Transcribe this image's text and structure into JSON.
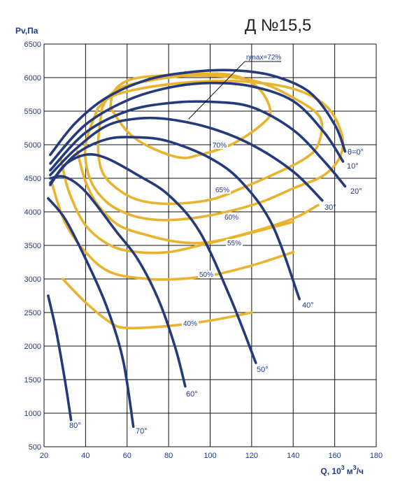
{
  "chart_data": {
    "type": "line",
    "title": "Д №15,5",
    "ylabel": "Pv,Па",
    "xlabel_main": "Q, 10",
    "xlabel_sup1": "3",
    "xlabel_unit": "м",
    "xlabel_sup2": "3",
    "xlabel_tail": "/ч",
    "xlim": [
      20,
      180
    ],
    "ylim": [
      500,
      6500
    ],
    "xticks": [
      20,
      40,
      60,
      80,
      100,
      120,
      140,
      160,
      180
    ],
    "yticks": [
      500,
      1000,
      1500,
      2000,
      2500,
      3000,
      3500,
      4000,
      4500,
      5000,
      5500,
      6000,
      6500
    ],
    "grid": true,
    "eta_max_label": "ηmax=72%",
    "colors": {
      "blade_curves": "#243a7a",
      "efficiency_curves": "#e8b430",
      "grid": "#111111",
      "text": "#1f3a8a"
    },
    "blade_angle_series": [
      {
        "name": "θ=0°",
        "points": [
          [
            23,
            4850
          ],
          [
            35,
            5320
          ],
          [
            50,
            5700
          ],
          [
            70,
            5970
          ],
          [
            90,
            6080
          ],
          [
            110,
            6110
          ],
          [
            130,
            6030
          ],
          [
            148,
            5780
          ],
          [
            160,
            5300
          ],
          [
            165,
            4900
          ]
        ]
      },
      {
        "name": "10°",
        "points": [
          [
            23,
            4720
          ],
          [
            40,
            5300
          ],
          [
            60,
            5660
          ],
          [
            80,
            5850
          ],
          [
            100,
            5920
          ],
          [
            120,
            5870
          ],
          [
            140,
            5650
          ],
          [
            155,
            5180
          ],
          [
            164,
            4750
          ]
        ]
      },
      {
        "name": "20°",
        "points": [
          [
            23,
            4620
          ],
          [
            40,
            5180
          ],
          [
            60,
            5500
          ],
          [
            80,
            5620
          ],
          [
            100,
            5640
          ],
          [
            120,
            5560
          ],
          [
            140,
            5220
          ],
          [
            155,
            4750
          ],
          [
            165,
            4380
          ]
        ]
      },
      {
        "name": "30°",
        "points": [
          [
            23,
            4550
          ],
          [
            35,
            4930
          ],
          [
            50,
            5280
          ],
          [
            65,
            5390
          ],
          [
            80,
            5380
          ],
          [
            100,
            5250
          ],
          [
            120,
            5000
          ],
          [
            140,
            4600
          ],
          [
            154,
            4170
          ]
        ]
      },
      {
        "name": "40°",
        "points": [
          [
            23,
            4430
          ],
          [
            35,
            4850
          ],
          [
            50,
            5080
          ],
          [
            65,
            5110
          ],
          [
            80,
            5050
          ],
          [
            100,
            4800
          ],
          [
            115,
            4450
          ],
          [
            130,
            3800
          ],
          [
            143,
            2700
          ]
        ]
      },
      {
        "name": "50°",
        "points": [
          [
            23,
            4400
          ],
          [
            30,
            4700
          ],
          [
            40,
            4850
          ],
          [
            50,
            4800
          ],
          [
            65,
            4550
          ],
          [
            80,
            4250
          ],
          [
            95,
            3700
          ],
          [
            110,
            2700
          ],
          [
            122,
            1750
          ]
        ]
      },
      {
        "name": "60°",
        "points": [
          [
            23,
            4500
          ],
          [
            30,
            4520
          ],
          [
            40,
            4300
          ],
          [
            55,
            3700
          ],
          [
            65,
            3300
          ],
          [
            75,
            2700
          ],
          [
            83,
            2000
          ],
          [
            88,
            1400
          ]
        ]
      },
      {
        "name": "70°",
        "points": [
          [
            22,
            4200
          ],
          [
            30,
            3900
          ],
          [
            40,
            3300
          ],
          [
            50,
            2600
          ],
          [
            58,
            1800
          ],
          [
            63,
            800
          ]
        ]
      },
      {
        "name": "80°",
        "points": [
          [
            22,
            2750
          ],
          [
            26,
            2200
          ],
          [
            30,
            1500
          ],
          [
            33,
            900
          ]
        ]
      }
    ],
    "efficiency_series": [
      {
        "name": "72%",
        "points": [
          [
            52,
            5550
          ],
          [
            53,
            5750
          ],
          [
            57,
            5900
          ],
          [
            66,
            6000
          ],
          [
            90,
            6050
          ],
          [
            110,
            6040
          ],
          [
            123,
            5850
          ],
          [
            129,
            5500
          ],
          [
            124,
            5280
          ],
          [
            110,
            5000
          ],
          [
            95,
            4850
          ],
          [
            85,
            4810
          ],
          [
            70,
            4980
          ],
          [
            60,
            5200
          ],
          [
            52,
            5550
          ]
        ]
      },
      {
        "name": "70%",
        "points": [
          [
            48,
            5550
          ],
          [
            52,
            5750
          ],
          [
            62,
            5900
          ],
          [
            90,
            6030
          ],
          [
            120,
            5960
          ],
          [
            140,
            5700
          ],
          [
            153,
            5400
          ],
          [
            152,
            5000
          ],
          [
            145,
            4780
          ],
          [
            130,
            4550
          ],
          [
            115,
            4350
          ],
          [
            100,
            4180
          ],
          [
            80,
            4120
          ],
          [
            65,
            4180
          ],
          [
            55,
            4350
          ],
          [
            48,
            4600
          ],
          [
            46,
            5000
          ],
          [
            48,
            5550
          ]
        ]
      },
      {
        "name": "65%",
        "points": [
          [
            46,
            5550
          ],
          [
            55,
            5750
          ],
          [
            80,
            5900
          ],
          [
            110,
            5950
          ],
          [
            138,
            5850
          ],
          [
            155,
            5600
          ],
          [
            163,
            5200
          ],
          [
            163,
            4850
          ],
          [
            155,
            4550
          ],
          [
            140,
            4350
          ],
          [
            125,
            4150
          ],
          [
            108,
            4000
          ],
          [
            90,
            3900
          ],
          [
            75,
            3880
          ],
          [
            62,
            3950
          ],
          [
            50,
            4150
          ],
          [
            42,
            4500
          ],
          [
            40,
            5000
          ],
          [
            46,
            5550
          ]
        ]
      },
      {
        "name": "60%",
        "points": [
          [
            36,
            4900
          ],
          [
            40,
            4450
          ],
          [
            46,
            4100
          ],
          [
            56,
            3800
          ],
          [
            70,
            3650
          ],
          [
            85,
            3550
          ],
          [
            100,
            3550
          ],
          [
            120,
            3700
          ],
          [
            140,
            3900
          ],
          [
            152,
            4100
          ]
        ]
      },
      {
        "name": "55%",
        "points": [
          [
            28,
            4800
          ],
          [
            32,
            4300
          ],
          [
            40,
            3800
          ],
          [
            52,
            3500
          ],
          [
            65,
            3400
          ],
          [
            80,
            3400
          ],
          [
            95,
            3500
          ],
          [
            115,
            3650
          ],
          [
            140,
            3850
          ]
        ]
      },
      {
        "name": "50%",
        "points": [
          [
            24,
            4400
          ],
          [
            30,
            3850
          ],
          [
            40,
            3400
          ],
          [
            52,
            3100
          ],
          [
            70,
            3000
          ],
          [
            85,
            3000
          ],
          [
            100,
            3050
          ],
          [
            120,
            3200
          ],
          [
            140,
            3400
          ]
        ]
      },
      {
        "name": "40%",
        "points": [
          [
            29,
            3000
          ],
          [
            40,
            2650
          ],
          [
            52,
            2350
          ],
          [
            60,
            2270
          ],
          [
            80,
            2300
          ],
          [
            100,
            2380
          ],
          [
            120,
            2500
          ]
        ]
      }
    ]
  }
}
